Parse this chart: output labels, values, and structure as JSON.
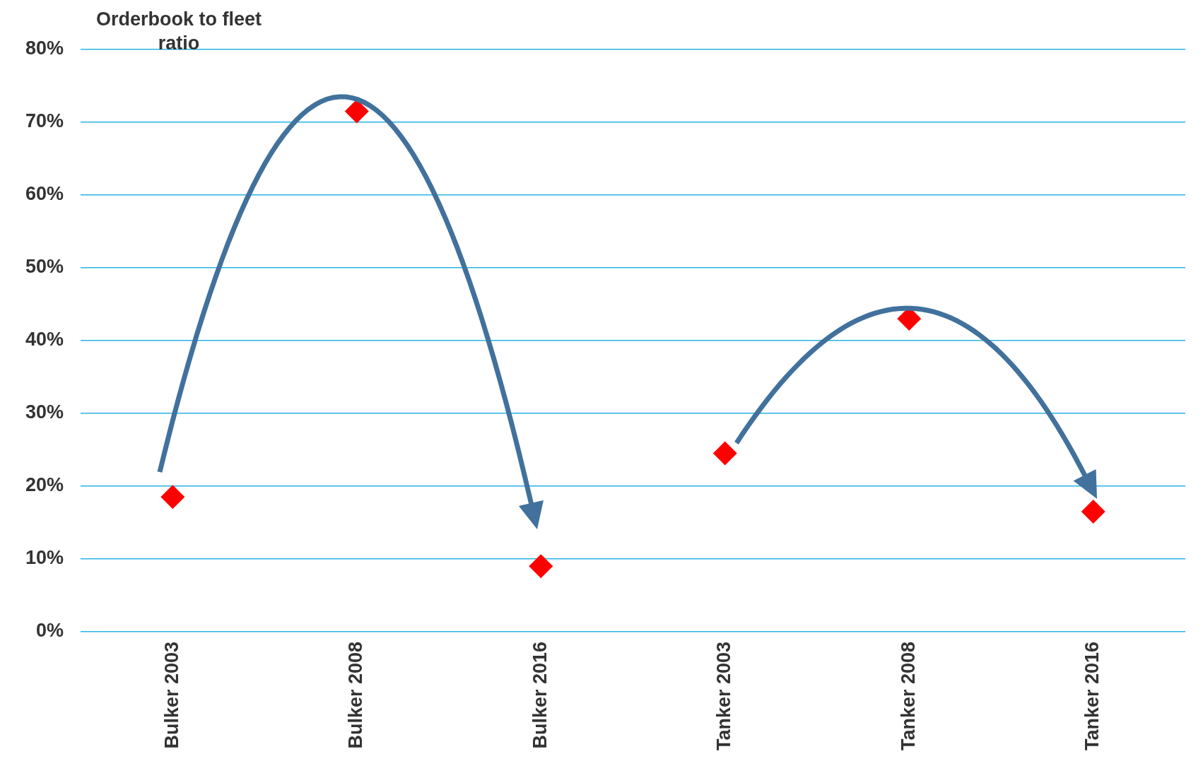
{
  "chart_data": {
    "type": "scatter",
    "ylabel": "Orderbook to fleet ratio",
    "categories": [
      "Bulker 2003",
      "Bulker 2008",
      "Bulker 2016",
      "Tanker 2003",
      "Tanker 2008",
      "Tanker 2016"
    ],
    "series": [
      {
        "color": "#ff0000",
        "values": [
          18.5,
          71.5,
          9,
          24.5,
          43,
          16.5
        ]
      }
    ],
    "marker": "diamond",
    "grid": "y",
    "legend": false,
    "ylim": [
      0,
      80
    ],
    "yticks": [
      {
        "value": 0,
        "label": "0%"
      },
      {
        "value": 10,
        "label": "10%"
      },
      {
        "value": 20,
        "label": "20%"
      },
      {
        "value": 30,
        "label": "30%"
      },
      {
        "value": 40,
        "label": "40%"
      },
      {
        "value": 50,
        "label": "50%"
      },
      {
        "value": 60,
        "label": "60%"
      },
      {
        "value": 70,
        "label": "70%"
      },
      {
        "value": 80,
        "label": "80%"
      }
    ]
  }
}
